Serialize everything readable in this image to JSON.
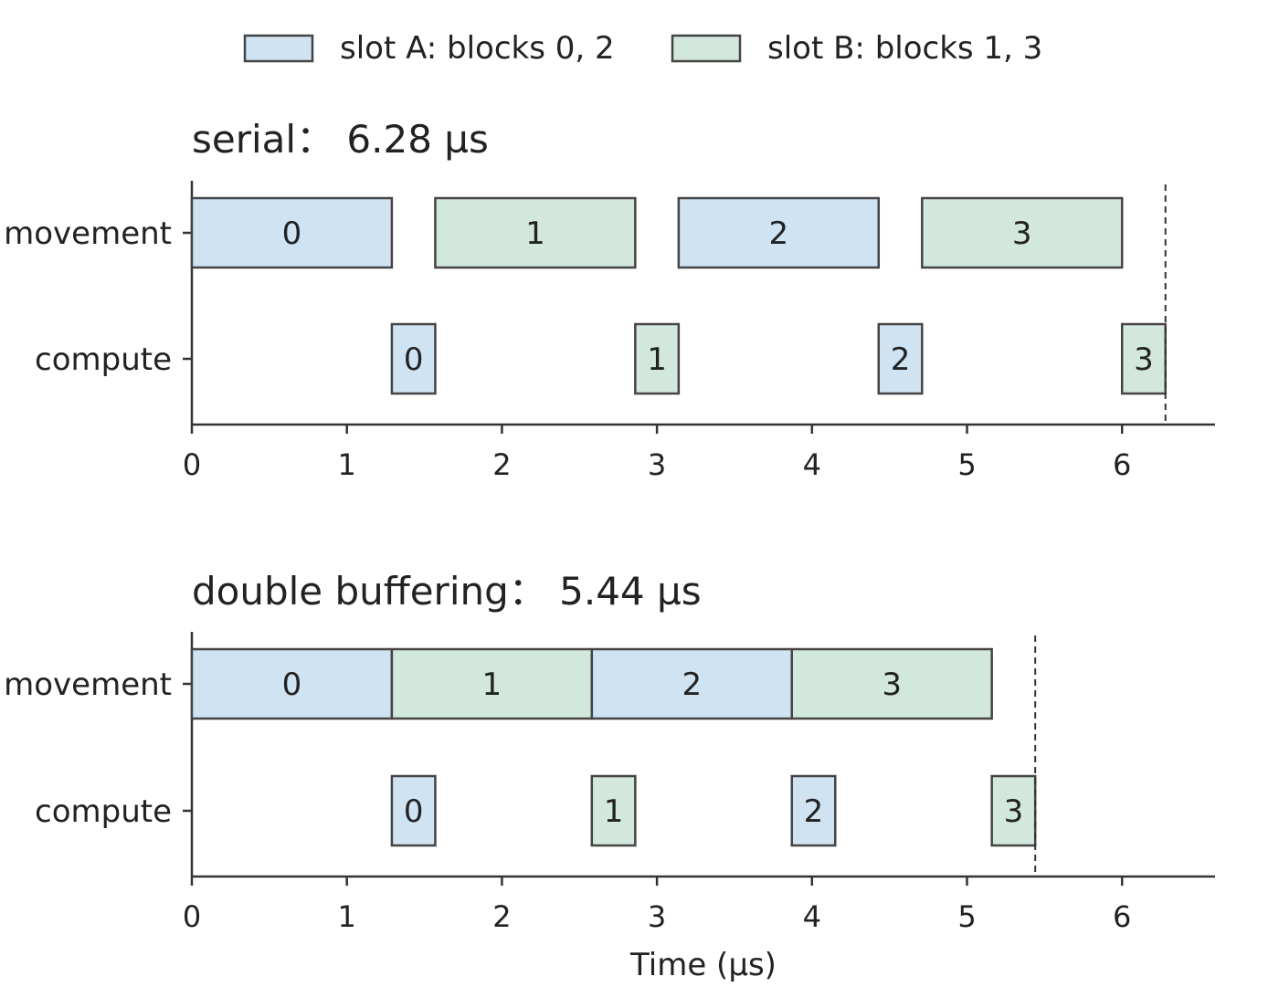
{
  "chart_data": {
    "type": "gantt",
    "legend": [
      {
        "label": "slot A: blocks 0, 2",
        "color": "#cfe3f3"
      },
      {
        "label": "slot B: blocks 1, 3",
        "color": "#d3e8dc"
      }
    ],
    "panels": [
      {
        "title": "serial： 6.28 µs",
        "total": 6.28,
        "rows": [
          "movement",
          "compute"
        ],
        "xlim": [
          0,
          6.6
        ],
        "xticks": [
          "0",
          "1",
          "2",
          "3",
          "4",
          "5",
          "6"
        ],
        "xlabel": "",
        "bars": [
          {
            "row": "movement",
            "start": 0.0,
            "end": 1.29,
            "label": "0",
            "slot": "A"
          },
          {
            "row": "compute",
            "start": 1.29,
            "end": 1.57,
            "label": "0",
            "slot": "A"
          },
          {
            "row": "movement",
            "start": 1.57,
            "end": 2.86,
            "label": "1",
            "slot": "B"
          },
          {
            "row": "compute",
            "start": 2.86,
            "end": 3.14,
            "label": "1",
            "slot": "B"
          },
          {
            "row": "movement",
            "start": 3.14,
            "end": 4.43,
            "label": "2",
            "slot": "A"
          },
          {
            "row": "compute",
            "start": 4.43,
            "end": 4.71,
            "label": "2",
            "slot": "A"
          },
          {
            "row": "movement",
            "start": 4.71,
            "end": 6.0,
            "label": "3",
            "slot": "B"
          },
          {
            "row": "compute",
            "start": 6.0,
            "end": 6.28,
            "label": "3",
            "slot": "B"
          }
        ]
      },
      {
        "title": "double buffering： 5.44 µs",
        "total": 5.44,
        "rows": [
          "movement",
          "compute"
        ],
        "xlim": [
          0,
          6.6
        ],
        "xticks": [
          "0",
          "1",
          "2",
          "3",
          "4",
          "5",
          "6"
        ],
        "xlabel": "Time (µs)",
        "bars": [
          {
            "row": "movement",
            "start": 0.0,
            "end": 1.29,
            "label": "0",
            "slot": "A"
          },
          {
            "row": "compute",
            "start": 1.29,
            "end": 1.57,
            "label": "0",
            "slot": "A"
          },
          {
            "row": "movement",
            "start": 1.29,
            "end": 2.58,
            "label": "1",
            "slot": "B"
          },
          {
            "row": "compute",
            "start": 2.58,
            "end": 2.86,
            "label": "1",
            "slot": "B"
          },
          {
            "row": "movement",
            "start": 2.58,
            "end": 3.87,
            "label": "2",
            "slot": "A"
          },
          {
            "row": "compute",
            "start": 3.87,
            "end": 4.15,
            "label": "2",
            "slot": "A"
          },
          {
            "row": "movement",
            "start": 3.87,
            "end": 5.16,
            "label": "3",
            "slot": "B"
          },
          {
            "row": "compute",
            "start": 5.16,
            "end": 5.44,
            "label": "3",
            "slot": "B"
          }
        ]
      }
    ]
  }
}
